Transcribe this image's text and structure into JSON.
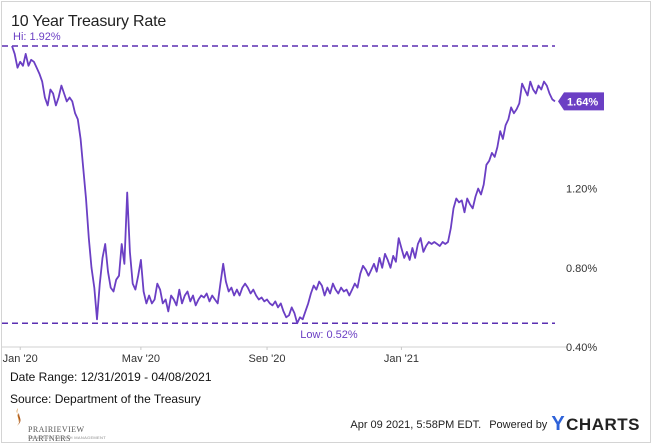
{
  "chart_data": {
    "type": "line",
    "title": "10 Year Treasury Rate",
    "x_ticks": [
      "Jan '20",
      "May '20",
      "Sep '20",
      "Jan '21"
    ],
    "y_ticks": [
      "1.20%",
      "0.80%",
      "0.40%"
    ],
    "ylim": [
      0.4,
      1.94
    ],
    "grid": false,
    "hi_label": "Hi: 1.92%",
    "low_label": "Low: 0.52%",
    "last_value_label": "1.64%",
    "series": [
      {
        "values": [
          1.92,
          1.88,
          1.81,
          1.84,
          1.82,
          1.88,
          1.82,
          1.85,
          1.84,
          1.81,
          1.78,
          1.74,
          1.66,
          1.62,
          1.7,
          1.68,
          1.62,
          1.66,
          1.72,
          1.68,
          1.64,
          1.66,
          1.64,
          1.58,
          1.55,
          1.45,
          1.3,
          1.15,
          0.95,
          0.8,
          0.7,
          0.54,
          0.72,
          0.85,
          0.92,
          0.78,
          0.7,
          0.68,
          0.74,
          0.76,
          0.92,
          0.82,
          1.18,
          0.88,
          0.72,
          0.69,
          0.76,
          0.84,
          0.68,
          0.62,
          0.66,
          0.62,
          0.64,
          0.72,
          0.69,
          0.62,
          0.64,
          0.58,
          0.66,
          0.64,
          0.61,
          0.69,
          0.62,
          0.66,
          0.68,
          0.63,
          0.66,
          0.61,
          0.64,
          0.66,
          0.65,
          0.67,
          0.63,
          0.66,
          0.64,
          0.62,
          0.72,
          0.82,
          0.73,
          0.68,
          0.7,
          0.66,
          0.69,
          0.66,
          0.7,
          0.72,
          0.7,
          0.67,
          0.69,
          0.66,
          0.64,
          0.65,
          0.63,
          0.64,
          0.62,
          0.61,
          0.63,
          0.6,
          0.62,
          0.58,
          0.55,
          0.56,
          0.6,
          0.57,
          0.52,
          0.55,
          0.54,
          0.58,
          0.62,
          0.67,
          0.71,
          0.69,
          0.73,
          0.71,
          0.66,
          0.7,
          0.67,
          0.72,
          0.69,
          0.67,
          0.7,
          0.68,
          0.69,
          0.66,
          0.69,
          0.72,
          0.7,
          0.77,
          0.81,
          0.79,
          0.76,
          0.79,
          0.82,
          0.78,
          0.85,
          0.8,
          0.87,
          0.84,
          0.8,
          0.86,
          0.83,
          0.95,
          0.9,
          0.85,
          0.88,
          0.84,
          0.9,
          0.85,
          0.92,
          0.95,
          0.88,
          0.91,
          0.93,
          0.92,
          0.93,
          0.92,
          0.91,
          0.93,
          0.92,
          0.93,
          1.0,
          1.1,
          1.15,
          1.13,
          1.14,
          1.08,
          1.15,
          1.12,
          1.1,
          1.16,
          1.2,
          1.17,
          1.22,
          1.32,
          1.34,
          1.38,
          1.36,
          1.41,
          1.49,
          1.45,
          1.52,
          1.55,
          1.61,
          1.58,
          1.6,
          1.63,
          1.73,
          1.7,
          1.67,
          1.74,
          1.7,
          1.68,
          1.72,
          1.7,
          1.74,
          1.72,
          1.68,
          1.65,
          1.64
        ]
      }
    ]
  },
  "notes": {
    "date_range": "Date Range: 12/31/2019 - 04/08/2021",
    "source": "Source: Department of the Treasury"
  },
  "logo": {
    "name": "PRAIRIEVIEW PARTNERS",
    "tagline": "STRATEGIC WEALTH MANAGEMENT"
  },
  "footer": {
    "timestamp": "Apr 09 2021, 5:58PM EDT.",
    "powered_by": "Powered by",
    "brand_mark": "Y",
    "brand_rest": "CHARTS"
  },
  "colors": {
    "line": "#6b3fc4",
    "dashed": "#5b2fb2",
    "accent_y": "#2e62d9"
  }
}
